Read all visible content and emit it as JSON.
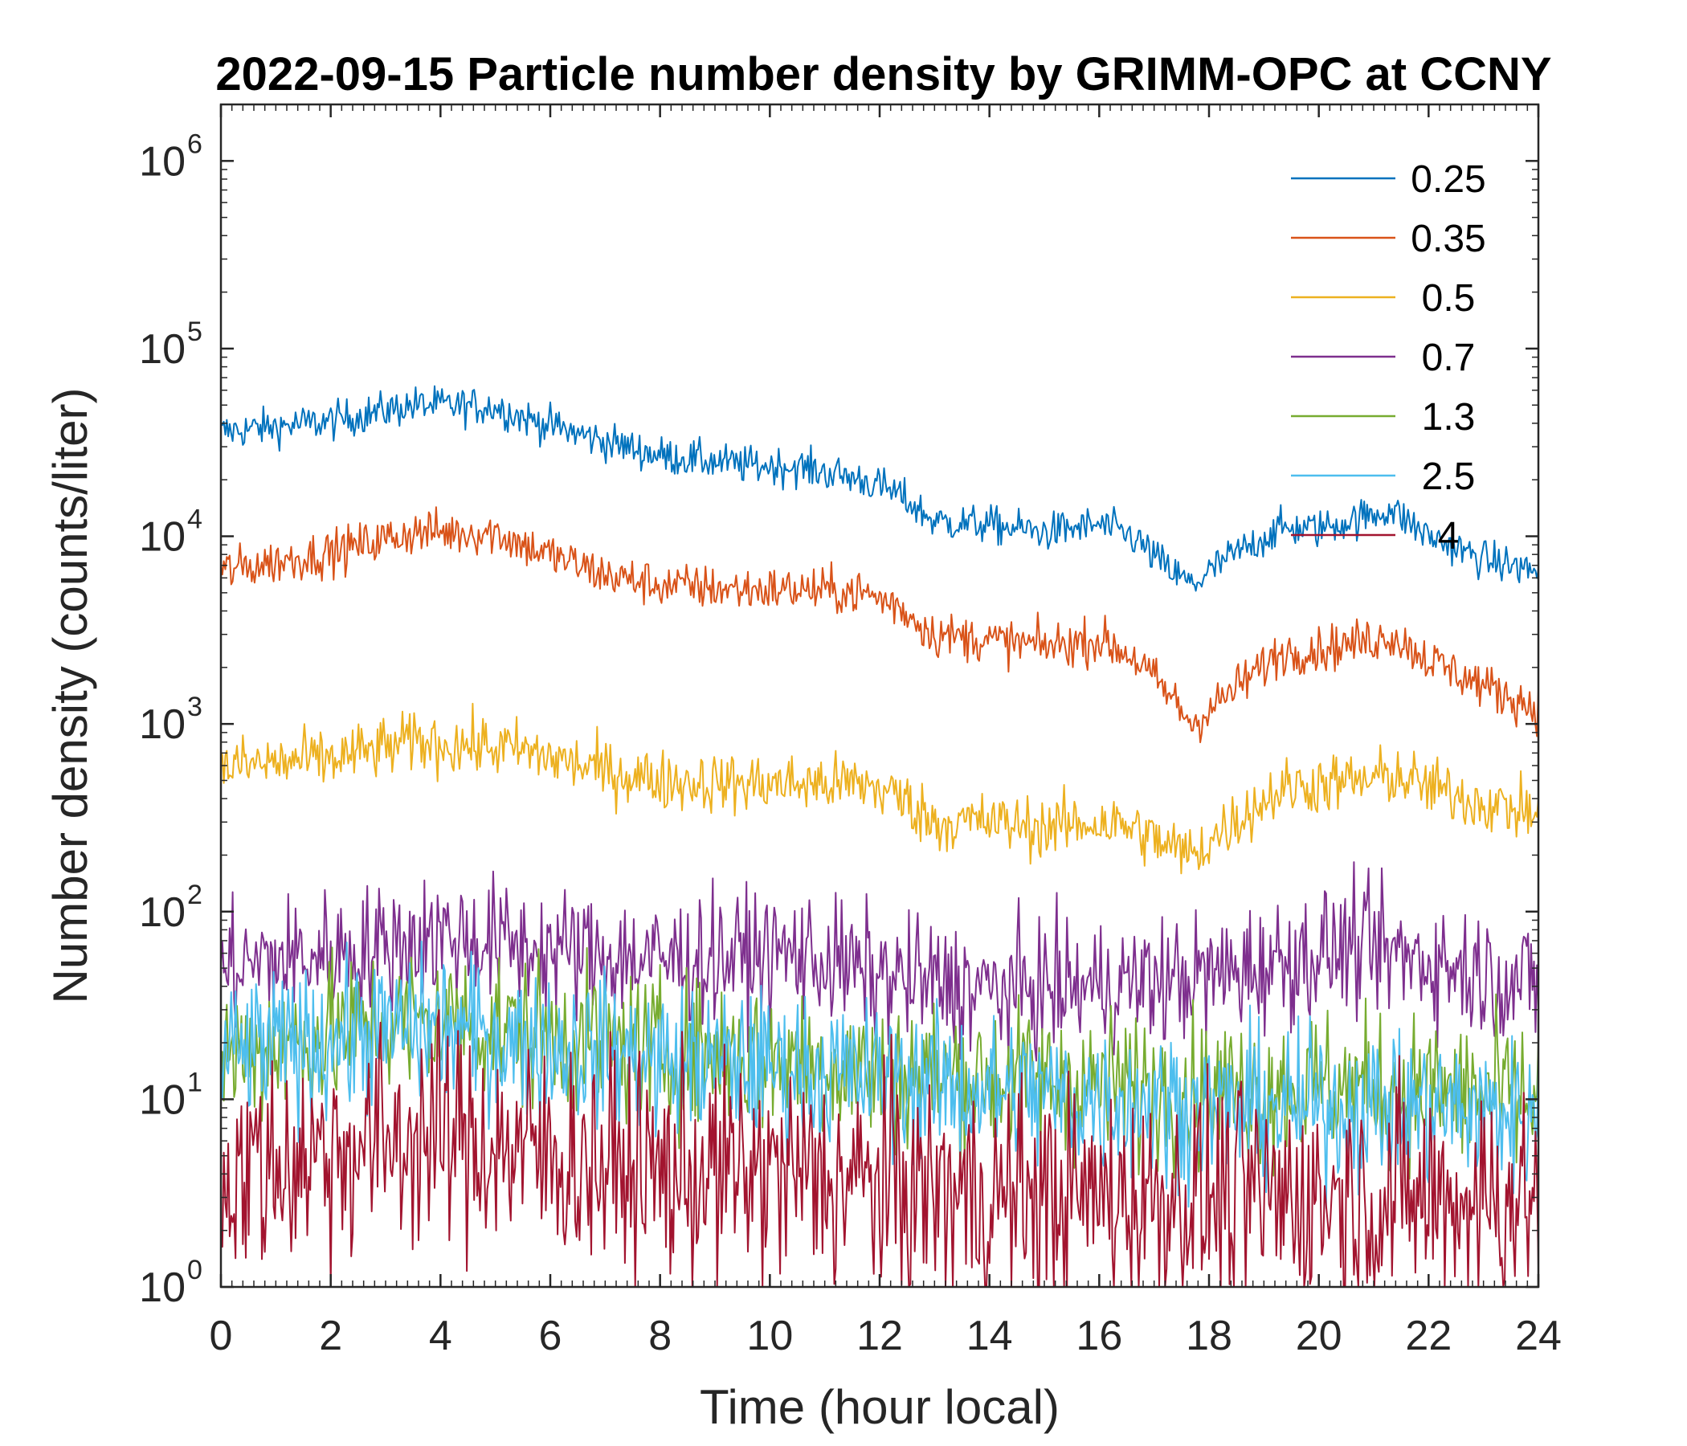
{
  "chart_data": {
    "type": "line",
    "title": "2022-09-15 Particle number density by GRIMM-OPC at CCNY",
    "xlabel": "Time (hour local)",
    "ylabel": "Number density (counts/liter)",
    "xlim": [
      0,
      24
    ],
    "ylim": [
      1,
      2000000
    ],
    "yscale": "log",
    "xticks": [
      "0",
      "2",
      "4",
      "6",
      "8",
      "10",
      "12",
      "14",
      "16",
      "18",
      "20",
      "22",
      "24"
    ],
    "xtick_values": [
      0,
      2,
      4,
      6,
      8,
      10,
      12,
      14,
      16,
      18,
      20,
      22,
      24
    ],
    "yticks": [
      {
        "base": "10",
        "exp": "0"
      },
      {
        "base": "10",
        "exp": "1"
      },
      {
        "base": "10",
        "exp": "2"
      },
      {
        "base": "10",
        "exp": "3"
      },
      {
        "base": "10",
        "exp": "4"
      },
      {
        "base": "10",
        "exp": "5"
      },
      {
        "base": "10",
        "exp": "6"
      }
    ],
    "ytick_values": [
      1,
      10,
      100,
      1000,
      10000,
      100000,
      1000000
    ],
    "legend_position": "top-right",
    "series": [
      {
        "name": "0.25",
        "color": "#0072BD",
        "noise": 0.05,
        "x": [
          0,
          2,
          3.5,
          5,
          5.5,
          7,
          8,
          9.5,
          10.5,
          11.7,
          12.3,
          13,
          14,
          15,
          16,
          16.6,
          17.3,
          17.7,
          18.3,
          19.3,
          20,
          21,
          21.3,
          22,
          23,
          24
        ],
        "y": [
          36000,
          41000,
          50000,
          49000,
          43000,
          32000,
          27000,
          24000,
          23500,
          20000,
          17000,
          12000,
          11500,
          10500,
          11500,
          10000,
          6500,
          5500,
          7500,
          11000,
          11000,
          13000,
          14000,
          10000,
          7500,
          6500
        ]
      },
      {
        "name": "0.35",
        "color": "#D95319",
        "noise": 0.06,
        "x": [
          0,
          2,
          3.5,
          5,
          5.5,
          7,
          8,
          9.5,
          10.5,
          11.7,
          12.3,
          13,
          14,
          15,
          16,
          16.6,
          17.3,
          17.7,
          18.3,
          19.3,
          20,
          21,
          21.3,
          22,
          23,
          24
        ],
        "y": [
          6500,
          8200,
          10500,
          10500,
          9000,
          6200,
          5500,
          5200,
          5200,
          5000,
          4300,
          3000,
          2800,
          2600,
          2800,
          2300,
          1400,
          1000,
          1400,
          2400,
          2500,
          2800,
          3000,
          2200,
          1600,
          1200
        ]
      },
      {
        "name": "0.5",
        "color": "#EDB120",
        "noise": 0.08,
        "x": [
          0,
          2,
          3.5,
          5,
          5.5,
          7,
          8,
          9.5,
          10.5,
          11.7,
          12.3,
          13,
          14,
          15,
          16,
          16.6,
          17.3,
          17.7,
          18.3,
          19.3,
          20,
          21,
          21.3,
          22,
          23,
          24
        ],
        "y": [
          590,
          650,
          800,
          750,
          720,
          560,
          500,
          480,
          480,
          480,
          420,
          300,
          300,
          280,
          300,
          280,
          220,
          200,
          280,
          450,
          480,
          500,
          540,
          460,
          380,
          330
        ]
      },
      {
        "name": "0.7",
        "color": "#7E2F8E",
        "noise": 0.17,
        "x": [
          0,
          3,
          4,
          6,
          8,
          10.5,
          12,
          14,
          16,
          18,
          20.5,
          22,
          24
        ],
        "y": [
          50,
          65,
          75,
          62,
          55,
          60,
          45,
          38,
          40,
          45,
          65,
          55,
          40
        ]
      },
      {
        "name": "1.3",
        "color": "#77AC30",
        "noise": 0.2,
        "x": [
          0,
          3,
          4,
          6,
          8,
          10,
          12,
          14,
          16,
          18,
          20,
          22,
          24
        ],
        "y": [
          17,
          25,
          26,
          22,
          18,
          17,
          14,
          13,
          12,
          11,
          12,
          11,
          10
        ]
      },
      {
        "name": "2.5",
        "color": "#4DBEEE",
        "noise": 0.2,
        "x": [
          0,
          3,
          4,
          6,
          8,
          10,
          12,
          14,
          16,
          18,
          20,
          22,
          24
        ],
        "y": [
          17,
          23,
          24,
          19,
          16,
          15,
          13,
          11,
          10,
          9,
          9,
          9,
          8
        ]
      },
      {
        "name": "4",
        "color": "#A2142F",
        "noise": 0.3,
        "x": [
          0,
          3,
          4,
          6,
          8,
          10,
          12,
          14,
          16,
          18,
          20,
          22,
          24
        ],
        "y": [
          4,
          6,
          6.5,
          5,
          4,
          4,
          3.5,
          3,
          3,
          3,
          3,
          3,
          3
        ]
      }
    ]
  }
}
